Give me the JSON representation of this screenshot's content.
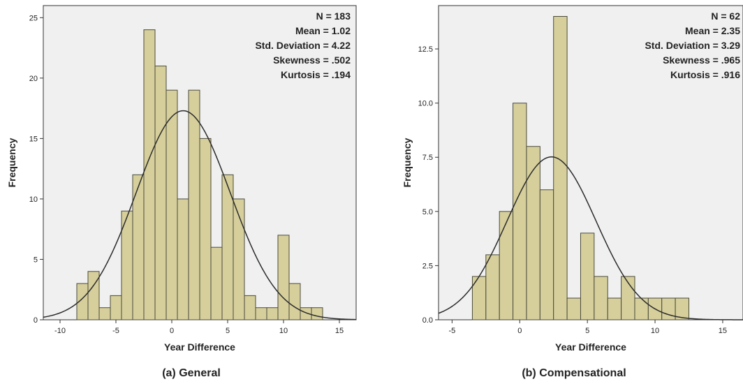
{
  "chart_data": [
    {
      "type": "bar",
      "panel": "a",
      "caption": "(a) General",
      "title": "",
      "xlabel": "Year Difference",
      "ylabel": "Frequency",
      "xlim": [
        -11.5,
        16.5
      ],
      "ylim": [
        0,
        26
      ],
      "xticks": [
        -10,
        -5,
        0,
        5,
        10,
        15
      ],
      "xtick_labels": [
        "-10",
        "-5",
        "0",
        "5",
        "10",
        "15"
      ],
      "yticks": [
        0,
        5,
        10,
        15,
        20,
        25
      ],
      "ytick_labels": [
        "0",
        "5",
        "10",
        "15",
        "20",
        "25"
      ],
      "bin_width": 1,
      "bin_start": -8.5,
      "values": [
        3,
        4,
        1,
        2,
        9,
        12,
        24,
        21,
        19,
        10,
        19,
        15,
        6,
        12,
        10,
        2,
        1,
        1,
        7,
        3,
        1,
        1
      ],
      "normal_curve": {
        "mean": 1.02,
        "sd": 4.22,
        "n": 183
      },
      "stats": [
        "N = 183",
        "Mean = 1.02",
        "Std. Deviation = 4.22",
        "Skewness = .502",
        "Kurtosis = .194"
      ],
      "grid": false,
      "legend": "none"
    },
    {
      "type": "bar",
      "panel": "b",
      "caption": "(b) Compensational",
      "title": "",
      "xlabel": "Year Difference",
      "ylabel": "Frequency",
      "xlim": [
        -6,
        16.5
      ],
      "ylim": [
        0,
        14.5
      ],
      "xticks": [
        -5,
        0,
        5,
        10,
        15
      ],
      "xtick_labels": [
        "-5",
        "0",
        "5",
        "10",
        "15"
      ],
      "yticks": [
        0,
        2.5,
        5,
        7.5,
        10,
        12.5
      ],
      "ytick_labels": [
        "0.0",
        "2.5",
        "5.0",
        "7.5",
        "10.0",
        "12.5"
      ],
      "bin_width": 1,
      "bin_start": -3.5,
      "values": [
        2,
        3,
        5,
        10,
        8,
        6,
        14,
        1,
        4,
        2,
        1,
        2,
        1,
        1,
        1,
        1
      ],
      "normal_curve": {
        "mean": 2.35,
        "sd": 3.29,
        "n": 62
      },
      "stats": [
        "N = 62",
        "Mean = 2.35",
        "Std. Deviation = 3.29",
        "Skewness = .965",
        "Kurtosis = .916"
      ],
      "grid": false,
      "legend": "none"
    }
  ],
  "colors": {
    "bar_fill": "#d6cf9c",
    "bar_stroke": "#4a4a3a",
    "plot_bg": "#f0f0f0",
    "curve": "#2b2b2b",
    "axis": "#333333",
    "text": "#222222"
  }
}
